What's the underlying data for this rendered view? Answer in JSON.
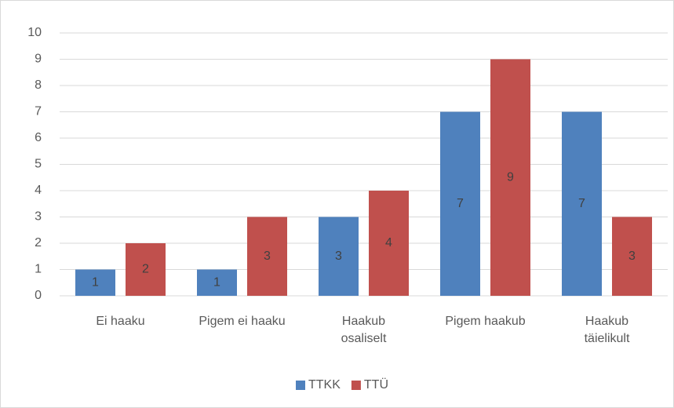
{
  "chart_data": {
    "type": "bar",
    "categories": [
      "Ei haaku",
      "Pigem ei haaku",
      "Haakub\nosaliselt",
      "Pigem haakub",
      "Haakub\ntäielikult"
    ],
    "series": [
      {
        "name": "TTKK",
        "color": "#4f81bd",
        "values": [
          1,
          1,
          3,
          7,
          7
        ]
      },
      {
        "name": "TTÜ",
        "color": "#c0504d",
        "values": [
          2,
          3,
          4,
          9,
          3
        ]
      }
    ],
    "ylim": [
      0,
      10
    ],
    "yticks": [
      0,
      1,
      2,
      3,
      4,
      5,
      6,
      7,
      8,
      9,
      10
    ],
    "grid": true,
    "legend": "bottom"
  }
}
